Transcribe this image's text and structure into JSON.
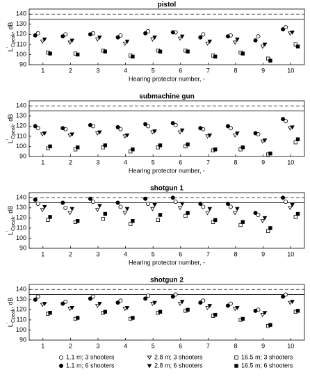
{
  "chart_data": [
    {
      "type": "scatter",
      "title": "pistol",
      "xlabel": "Hearing protector number, -",
      "x": [
        1,
        2,
        3,
        4,
        5,
        6,
        7,
        8,
        9,
        10
      ],
      "xlim": [
        0.5,
        10.5
      ],
      "xticks": [
        1,
        2,
        3,
        4,
        5,
        6,
        7,
        8,
        9,
        10
      ],
      "ylim": [
        90,
        145
      ],
      "yticks": [
        90,
        100,
        110,
        120,
        130,
        140
      ],
      "ref_lines": [
        {
          "value": 140,
          "style": "dashed"
        },
        {
          "value": 135,
          "style": "solid"
        }
      ],
      "series": [
        {
          "values": [
            121,
            120,
            121,
            119,
            123,
            122,
            120,
            119,
            118,
            127
          ]
        },
        {
          "values": [
            119,
            118,
            120,
            117,
            121,
            122,
            117,
            118,
            114,
            125
          ]
        },
        {
          "values": [
            113,
            112,
            115,
            111,
            115,
            116,
            111,
            112,
            108,
            121
          ]
        },
        {
          "values": [
            115,
            114,
            117,
            113,
            117,
            118,
            113,
            115,
            110,
            122
          ]
        },
        {
          "values": [
            102,
            101,
            104,
            99,
            104,
            104,
            99,
            102,
            96,
            110
          ]
        },
        {
          "values": [
            101,
            100,
            103,
            98,
            103,
            103,
            98,
            101,
            94,
            108
          ]
        }
      ]
    },
    {
      "type": "scatter",
      "title": "submachine gun",
      "xlabel": "Hearing protector number, -",
      "x": [
        1,
        2,
        3,
        4,
        5,
        6,
        7,
        8,
        9,
        10
      ],
      "xlim": [
        0.5,
        10.5
      ],
      "xticks": [
        1,
        2,
        3,
        4,
        5,
        6,
        7,
        8,
        9,
        10
      ],
      "ylim": [
        90,
        145
      ],
      "yticks": [
        90,
        100,
        110,
        120,
        130,
        140
      ],
      "ref_lines": [
        {
          "value": 140,
          "style": "dashed"
        },
        {
          "value": 135,
          "style": "solid"
        }
      ],
      "series": [
        {
          "values": [
            118,
            117,
            120,
            117,
            120,
            121,
            117,
            118,
            112,
            125
          ]
        },
        {
          "values": [
            120,
            118,
            121,
            119,
            122,
            123,
            118,
            120,
            113,
            127
          ]
        },
        {
          "values": [
            112,
            111,
            113,
            110,
            114,
            114,
            110,
            111,
            105,
            118
          ]
        },
        {
          "values": [
            113,
            112,
            114,
            111,
            115,
            116,
            111,
            113,
            106,
            119
          ]
        },
        {
          "values": [
            98,
            97,
            99,
            95,
            99,
            100,
            96,
            97,
            92,
            104
          ]
        },
        {
          "values": [
            100,
            99,
            101,
            97,
            101,
            102,
            97,
            99,
            93,
            107
          ]
        }
      ]
    },
    {
      "type": "scatter",
      "title": "shotgun 1",
      "xlabel": "Hearing protector number, -",
      "x": [
        1,
        2,
        3,
        4,
        5,
        6,
        7,
        8,
        9,
        10
      ],
      "xlim": [
        0.5,
        10.5
      ],
      "xticks": [
        1,
        2,
        3,
        4,
        5,
        6,
        7,
        8,
        9,
        10
      ],
      "ylim": [
        90,
        145
      ],
      "yticks": [
        90,
        100,
        110,
        120,
        130,
        140
      ],
      "ref_lines": [
        {
          "value": 140,
          "style": "dashed"
        },
        {
          "value": 135,
          "style": "solid"
        }
      ],
      "series": [
        {
          "values": [
            134,
            130,
            136,
            131,
            134,
            136,
            131,
            131,
            123,
            136
          ]
        },
        {
          "values": [
            138,
            135,
            139,
            135,
            139,
            140,
            134,
            134,
            125,
            140
          ]
        },
        {
          "values": [
            128,
            125,
            128,
            125,
            129,
            130,
            125,
            125,
            117,
            130
          ]
        },
        {
          "values": [
            131,
            129,
            132,
            129,
            133,
            134,
            129,
            129,
            120,
            133
          ]
        },
        {
          "values": [
            118,
            116,
            119,
            114,
            118,
            122,
            116,
            113,
            107,
            121
          ]
        },
        {
          "values": [
            121,
            117,
            124,
            117,
            123,
            125,
            118,
            116,
            110,
            124
          ]
        }
      ]
    },
    {
      "type": "scatter",
      "title": "shotgun 2",
      "x": [
        1,
        2,
        3,
        4,
        5,
        6,
        7,
        8,
        9,
        10
      ],
      "xlim": [
        0.5,
        10.5
      ],
      "xticks": [
        1,
        2,
        3,
        4,
        5,
        6,
        7,
        8,
        9,
        10
      ],
      "ylim": [
        90,
        145
      ],
      "yticks": [
        90,
        100,
        110,
        120,
        130,
        140
      ],
      "ref_lines": [
        {
          "value": 140,
          "style": "dashed"
        },
        {
          "value": 135,
          "style": "solid"
        }
      ],
      "series": [
        {
          "values": [
            133,
            128,
            133,
            129,
            134,
            135,
            129,
            126,
            120,
            135
          ]
        },
        {
          "values": [
            130,
            126,
            131,
            127,
            131,
            133,
            127,
            124,
            119,
            133
          ]
        },
        {
          "values": [
            125,
            121,
            124,
            121,
            126,
            126,
            122,
            121,
            115,
            127
          ]
        },
        {
          "values": [
            126,
            122,
            126,
            122,
            127,
            128,
            124,
            122,
            117,
            128
          ]
        },
        {
          "values": [
            116,
            111,
            117,
            111,
            117,
            119,
            114,
            110,
            104,
            118
          ]
        },
        {
          "values": [
            117,
            112,
            118,
            112,
            118,
            120,
            115,
            111,
            105,
            119
          ]
        }
      ]
    }
  ],
  "ylabel": {
    "base": "L",
    "sup": "′",
    "sub": "Cpeak",
    "rest": ", dB"
  },
  "legend": [
    {
      "name": "1.1 m; 3 shooters",
      "marker": "circle",
      "filled": false,
      "color": "#000000"
    },
    {
      "name": "1.1 m; 6 shooters",
      "marker": "circle",
      "filled": true,
      "color": "#000000"
    },
    {
      "name": "2.8 m; 3 shooters",
      "marker": "triangle",
      "filled": false,
      "color": "#000000"
    },
    {
      "name": "2.8 m; 6 shooters",
      "marker": "triangle",
      "filled": true,
      "color": "#000000"
    },
    {
      "name": "16.5 m; 3 shooters",
      "marker": "square",
      "filled": false,
      "color": "#000000"
    },
    {
      "name": "16.5 m; 6 shooters",
      "marker": "square",
      "filled": true,
      "color": "#000000"
    }
  ]
}
